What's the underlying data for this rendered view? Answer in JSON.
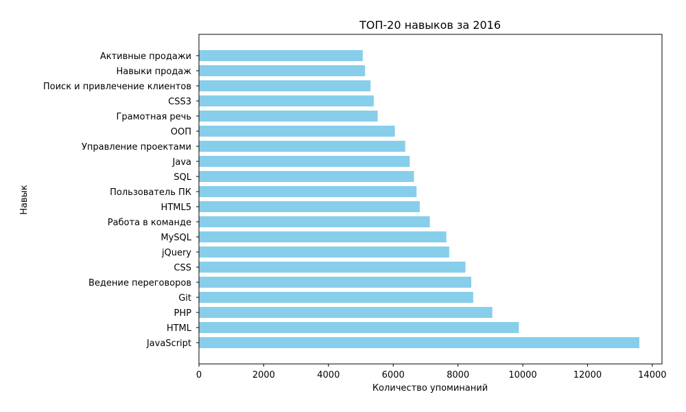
{
  "chart_data": {
    "type": "bar",
    "orientation": "horizontal",
    "title": "ТОП-20 навыков за 2016",
    "xlabel": "Количество упоминаний",
    "ylabel": "Навык",
    "xlim": [
      0,
      14300
    ],
    "xticks": [
      0,
      2000,
      4000,
      6000,
      8000,
      10000,
      12000,
      14000
    ],
    "grid": false,
    "bar_color": "#87CEEB",
    "categories": [
      "JavaScript",
      "HTML",
      "PHP",
      "Git",
      "Ведение переговоров",
      "CSS",
      "jQuery",
      "MySQL",
      "Работа в команде",
      "HTML5",
      "Пользователь ПК",
      "SQL",
      "Java",
      "Управление проектами",
      "ООП",
      "Грамотная речь",
      "CSS3",
      "Поиск и привлечение клиентов",
      "Навыки продаж",
      "Активные продажи"
    ],
    "values": [
      13600,
      9880,
      9060,
      8470,
      8410,
      8230,
      7730,
      7640,
      7130,
      6820,
      6720,
      6640,
      6510,
      6370,
      6050,
      5520,
      5400,
      5300,
      5130,
      5060
    ]
  }
}
